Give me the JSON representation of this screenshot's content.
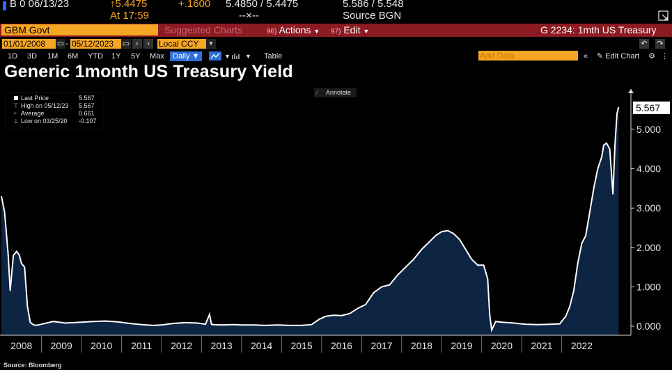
{
  "quote": {
    "line1_left": "B 0 06/13/23",
    "line1_price": "↑5.4475",
    "line1_change": "+.1600",
    "line1_bidask": "5.4850 / 5.4475",
    "line1_hilo": "5.586 / 5.548",
    "line2_time": "At 17:59",
    "line2_mid": "--×--",
    "line2_source": "Source BGN",
    "accent": "#f5a623"
  },
  "fnbar": {
    "security": "GBM Govt",
    "suggested": "Suggested Charts",
    "actions_num": "96)",
    "actions": "Actions",
    "edit_num": "97)",
    "edit": "Edit",
    "right": "G 2234: 1mth US Treasury",
    "bar_color": "#8b1a22"
  },
  "controls": {
    "start_date": "01/01/2008",
    "end_date": "05/12/2023",
    "currency": "Local CCY"
  },
  "period": {
    "options": [
      "1D",
      "3D",
      "1M",
      "6M",
      "YTD",
      "1Y",
      "5Y",
      "Max"
    ],
    "frequency": "Daily",
    "table": "Table",
    "add_data": "Add Data",
    "edit_chart": "Edit Chart"
  },
  "title": "Generic 1month US Treasury Yield",
  "legend": {
    "items": [
      {
        "label": "Last Price",
        "value": "5.567"
      },
      {
        "label": "High on 05/12/23",
        "value": "5.567"
      },
      {
        "label": "Average",
        "value": "0.661"
      },
      {
        "label": "Low on 03/25/20",
        "value": "-0.107"
      }
    ]
  },
  "annotate": "Annotate",
  "last_value": "5.567",
  "source": "Source: Bloomberg",
  "chart_data": {
    "type": "area",
    "title": "Generic 1month US Treasury Yield",
    "xlabel": "",
    "ylabel": "",
    "ylim": [
      -0.1,
      5.9
    ],
    "xlim": [
      2008.0,
      2023.45
    ],
    "y_ticks": [
      "0.000",
      "1.000",
      "2.000",
      "3.000",
      "4.000",
      "5.000"
    ],
    "x_ticks": [
      "2008",
      "2009",
      "2010",
      "2011",
      "2012",
      "2013",
      "2014",
      "2015",
      "2016",
      "2017",
      "2018",
      "2019",
      "2020",
      "2021",
      "2022"
    ],
    "grid": false,
    "legend_position": "top-left",
    "fill_color": "#0d2443",
    "line_color": "#ffffff",
    "x": [
      2008.0,
      2008.08,
      2008.17,
      2008.22,
      2008.3,
      2008.38,
      2008.45,
      2008.5,
      2008.58,
      2008.65,
      2008.72,
      2008.78,
      2008.85,
      2008.92,
      2009.0,
      2009.3,
      2009.6,
      2010.0,
      2010.3,
      2010.6,
      2010.9,
      2011.2,
      2011.5,
      2011.8,
      2012.0,
      2012.3,
      2012.6,
      2012.9,
      2013.1,
      2013.2,
      2013.25,
      2013.3,
      2013.5,
      2013.8,
      2014.0,
      2014.3,
      2014.6,
      2014.9,
      2015.2,
      2015.5,
      2015.75,
      2015.95,
      2016.1,
      2016.3,
      2016.5,
      2016.7,
      2016.9,
      2017.1,
      2017.3,
      2017.5,
      2017.7,
      2017.9,
      2018.1,
      2018.3,
      2018.5,
      2018.7,
      2018.85,
      2019.0,
      2019.15,
      2019.3,
      2019.45,
      2019.6,
      2019.75,
      2019.9,
      2020.05,
      2020.15,
      2020.2,
      2020.25,
      2020.35,
      2020.5,
      2020.8,
      2021.1,
      2021.4,
      2021.7,
      2021.95,
      2022.1,
      2022.2,
      2022.3,
      2022.4,
      2022.5,
      2022.6,
      2022.7,
      2022.8,
      2022.9,
      2023.0,
      2023.05,
      2023.12,
      2023.2,
      2023.28,
      2023.33,
      2023.38,
      2023.42
    ],
    "values": [
      3.3,
      2.9,
      1.8,
      0.9,
      1.8,
      1.9,
      1.8,
      1.6,
      1.5,
      0.5,
      0.1,
      0.05,
      0.02,
      0.03,
      0.05,
      0.12,
      0.08,
      0.1,
      0.12,
      0.13,
      0.11,
      0.07,
      0.04,
      0.02,
      0.03,
      0.07,
      0.09,
      0.08,
      0.05,
      0.3,
      0.05,
      0.04,
      0.03,
      0.04,
      0.03,
      0.03,
      0.02,
      0.03,
      0.02,
      0.02,
      0.04,
      0.18,
      0.25,
      0.28,
      0.27,
      0.32,
      0.45,
      0.55,
      0.85,
      1.0,
      1.05,
      1.3,
      1.5,
      1.7,
      1.95,
      2.15,
      2.3,
      2.4,
      2.43,
      2.35,
      2.2,
      1.95,
      1.7,
      1.55,
      1.55,
      1.2,
      0.3,
      -0.1,
      0.12,
      0.1,
      0.08,
      0.05,
      0.04,
      0.05,
      0.06,
      0.25,
      0.5,
      0.9,
      1.6,
      2.1,
      2.3,
      2.9,
      3.5,
      4.0,
      4.3,
      4.6,
      4.65,
      4.5,
      3.35,
      4.6,
      5.4,
      5.567
    ]
  }
}
